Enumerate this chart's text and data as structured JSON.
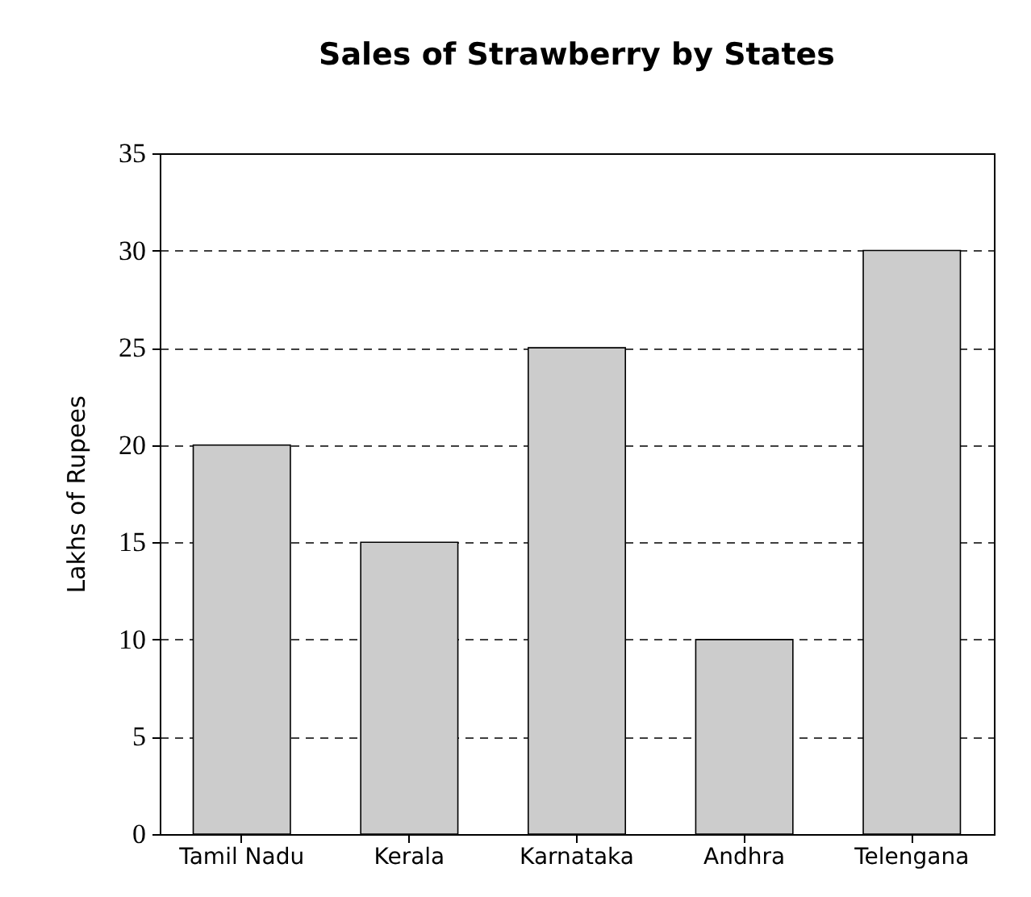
{
  "chart_data": {
    "type": "bar",
    "title": "Sales of Strawberry by States",
    "ylabel": "Lakhs of Rupees",
    "categories": [
      "Tamil Nadu",
      "Kerala",
      "Karnataka",
      "Andhra",
      "Telengana"
    ],
    "values": [
      20,
      15,
      25,
      10,
      30
    ],
    "color": "#cccccc",
    "ylim": [
      0,
      35
    ],
    "yticks": [
      0,
      5,
      10,
      15,
      20,
      25,
      30,
      35
    ],
    "grid": "y"
  }
}
